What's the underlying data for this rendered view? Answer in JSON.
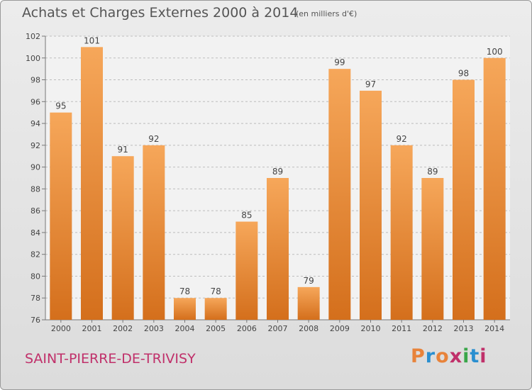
{
  "header": {
    "title": "Achats et Charges Externes 2000 à 2014",
    "unit": "(en milliers d'€)"
  },
  "footer": {
    "commune": "SAINT-PIERRE-DE-TRIVISY",
    "brand": "Proxiti",
    "brand_colors": [
      "#e8833a",
      "#2a8fd0",
      "#e8833a",
      "#c0306a",
      "#3aa64a",
      "#2a8fd0",
      "#c0306a"
    ]
  },
  "colors": {
    "bar_light": "#f6a75a",
    "bar_dark": "#d46f1c",
    "grid": "#bdbdbd",
    "plot_bg": "#f2f2f2",
    "commune_text": "#c0306a"
  },
  "chart_data": {
    "type": "bar",
    "categories": [
      "2000",
      "2001",
      "2002",
      "2003",
      "2004",
      "2005",
      "2006",
      "2007",
      "2008",
      "2009",
      "2010",
      "2011",
      "2012",
      "2013",
      "2014"
    ],
    "values": [
      95,
      101,
      91,
      92,
      78,
      78,
      85,
      89,
      79,
      99,
      97,
      92,
      89,
      98,
      100
    ],
    "ylim": [
      76,
      102
    ],
    "yticks": [
      76,
      78,
      80,
      82,
      84,
      86,
      88,
      90,
      92,
      94,
      96,
      98,
      100,
      102
    ],
    "grid": true,
    "data_labels": true
  }
}
